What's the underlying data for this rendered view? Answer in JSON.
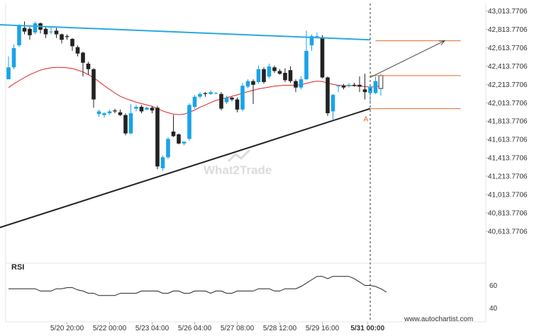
{
  "chart_data": {
    "type": "candlestick",
    "y_ticks": [
      "43,013.7706",
      "42,813.7706",
      "42,613.7706",
      "42,413.7706",
      "42,213.7706",
      "42,013.7706",
      "41,813.7706",
      "41,613.7706",
      "41,413.7706",
      "41,213.7706",
      "41,013.7706",
      "40,813.7706",
      "40,613.7706"
    ],
    "y_tick_values": [
      43013.7706,
      42813.7706,
      42613.7706,
      42413.7706,
      42213.7706,
      42013.7706,
      41813.7706,
      41613.7706,
      41413.7706,
      41213.7706,
      41013.7706,
      40813.7706,
      40613.7706
    ],
    "ylim": [
      40455,
      43080
    ],
    "x_ticks": [
      "5/20 20:00",
      "5/22 00:00",
      "5/23 04:00",
      "5/26 04:00",
      "5/27 08:00",
      "5/28 12:00",
      "5/29 16:00",
      "5/31 00:00"
    ],
    "x_tick_index": [
      11,
      19,
      27,
      35,
      43,
      51,
      59,
      67.5
    ],
    "x_bold_tick": "5/31 00:00",
    "candles": [
      [
        42270,
        42400,
        42390,
        42520
      ],
      [
        42400,
        42610,
        42650,
        42380
      ],
      [
        42640,
        42850,
        42870,
        42620
      ],
      [
        42830,
        42790,
        42900,
        42760
      ],
      [
        42820,
        42750,
        42840,
        42700
      ],
      [
        42780,
        42880,
        42900,
        42760
      ],
      [
        42880,
        42810,
        42890,
        42770
      ],
      [
        42820,
        42760,
        42840,
        42720
      ],
      [
        42790,
        42790,
        42840,
        42760
      ],
      [
        42800,
        42760,
        42830,
        42720
      ],
      [
        42760,
        42700,
        42770,
        42660
      ],
      [
        42740,
        42730,
        42760,
        42700
      ],
      [
        42710,
        42630,
        42720,
        42580
      ],
      [
        42620,
        42550,
        42640,
        42520
      ],
      [
        42560,
        42450,
        42570,
        42300
      ],
      [
        42440,
        42380,
        42460,
        42320
      ],
      [
        42380,
        42050,
        42390,
        41960
      ],
      [
        41890,
        41920,
        41940,
        41860
      ],
      [
        41880,
        41900,
        41910,
        41850
      ],
      [
        41900,
        41920,
        41940,
        41880
      ],
      [
        41930,
        41920,
        41950,
        41900
      ],
      [
        41910,
        41880,
        41940,
        41870
      ],
      [
        41880,
        41680,
        41900,
        41660
      ],
      [
        41680,
        41900,
        42000,
        41670
      ],
      [
        41950,
        41970,
        41990,
        41920
      ],
      [
        41970,
        41920,
        41990,
        41900
      ],
      [
        41940,
        41960,
        41970,
        41930
      ],
      [
        41960,
        41930,
        41980,
        41900
      ],
      [
        41960,
        41320,
        41980,
        41290
      ],
      [
        41300,
        41420,
        41440,
        41270
      ],
      [
        41420,
        41620,
        41640,
        41400
      ],
      [
        41700,
        41650,
        41880,
        41640
      ],
      [
        41670,
        41570,
        41680,
        41560
      ],
      [
        41570,
        41590,
        41590,
        41550
      ],
      [
        41620,
        41990,
        42010,
        41600
      ],
      [
        41970,
        42080,
        42100,
        41950
      ],
      [
        42080,
        42110,
        42130,
        42060
      ],
      [
        42120,
        42110,
        42130,
        42080
      ],
      [
        42110,
        42130,
        42150,
        42100
      ],
      [
        42120,
        42120,
        42130,
        42110
      ],
      [
        42110,
        41950,
        42130,
        41930
      ],
      [
        42020,
        42070,
        42090,
        42000
      ],
      [
        42070,
        42050,
        42080,
        42030
      ],
      [
        42050,
        41940,
        42070,
        41910
      ],
      [
        41940,
        42200,
        42230,
        41920
      ],
      [
        42190,
        42250,
        42270,
        42170
      ],
      [
        42250,
        42210,
        42270,
        42000
      ],
      [
        42240,
        42380,
        42420,
        42220
      ],
      [
        42380,
        42240,
        42400,
        42220
      ],
      [
        42300,
        42410,
        42440,
        42280
      ],
      [
        42400,
        42360,
        42420,
        42340
      ],
      [
        42360,
        42330,
        42380,
        42320
      ],
      [
        42340,
        42260,
        42390,
        42240
      ],
      [
        42370,
        42250,
        42410,
        42230
      ],
      [
        42250,
        42180,
        42270,
        42130
      ],
      [
        42180,
        42270,
        42300,
        42160
      ],
      [
        42270,
        42580,
        42800,
        42260
      ],
      [
        42640,
        42740,
        42760,
        42580
      ],
      [
        42740,
        42740,
        42780,
        42720
      ],
      [
        42730,
        42290,
        42750,
        42280
      ],
      [
        42290,
        41900,
        42300,
        41870
      ],
      [
        41920,
        42100,
        42110,
        41830
      ],
      [
        42200,
        42200,
        42210,
        42130
      ],
      [
        42200,
        42180,
        42220,
        42160
      ],
      [
        42200,
        42210,
        42230,
        42180
      ],
      [
        42210,
        42200,
        42230,
        42190
      ],
      [
        42210,
        42190,
        42300,
        42130
      ],
      [
        42160,
        42130,
        42330,
        42050
      ],
      [
        42120,
        42190,
        42200,
        42000
      ],
      [
        42120,
        42250,
        42300,
        42110
      ],
      [
        42170,
        42310,
        42330,
        42090
      ]
    ],
    "ma": [
      42180,
      42220,
      42255,
      42290,
      42320,
      42345,
      42370,
      42385,
      42395,
      42400,
      42400,
      42395,
      42388,
      42370,
      42350,
      42320,
      42285,
      42245,
      42200,
      42160,
      42120,
      42085,
      42060,
      42040,
      42020,
      42005,
      41990,
      41975,
      41950,
      41925,
      41905,
      41890,
      41885,
      41890,
      41910,
      41935,
      41965,
      41990,
      42015,
      42040,
      42055,
      42070,
      42085,
      42100,
      42120,
      42135,
      42150,
      42165,
      42175,
      42185,
      42195,
      42200,
      42205,
      42205,
      42205,
      42210,
      42225,
      42240,
      42250,
      42245,
      42230,
      42215,
      42205,
      42200,
      42200,
      42200,
      42195,
      42190,
      42185,
      42190,
      42195
    ],
    "trendlines": [
      {
        "from": [
          -4,
          42870
        ],
        "to": [
          68,
          42700
        ]
      },
      {
        "from": [
          -4,
          40610
        ],
        "to": [
          68,
          41950
        ]
      }
    ],
    "forecast_arrow": {
      "from": [
        68,
        42290
      ],
      "to": [
        82,
        42690
      ]
    },
    "target_levels": [
      {
        "value": 42690,
        "from": 69,
        "to": 85
      },
      {
        "value": 42310,
        "from": 68,
        "to": 85
      },
      {
        "value": 41950,
        "from": 68,
        "to": 85
      }
    ],
    "point_label": "A",
    "point_label_at": [
      67,
      41810
    ],
    "vertical_marker_index": 68,
    "rsi": {
      "label": "RSI",
      "ticks": [
        60,
        40
      ],
      "ylim": [
        32,
        76
      ],
      "values": [
        57,
        57,
        57,
        57,
        57,
        57,
        55,
        55,
        55,
        57,
        57,
        58,
        58,
        56,
        55,
        53,
        53,
        51,
        51,
        51,
        51,
        53,
        53,
        53,
        53,
        55,
        55,
        55,
        55,
        53,
        53,
        55,
        55,
        53,
        53,
        55,
        55,
        55,
        53,
        55,
        55,
        53,
        53,
        55,
        55,
        55,
        55,
        57,
        57,
        57,
        55,
        55,
        57,
        57,
        57,
        59,
        62,
        65,
        68,
        68,
        66,
        68,
        68,
        68,
        68,
        66,
        63,
        60,
        60,
        59,
        57
      ]
    },
    "colors": {
      "bull": "#1aa3e8",
      "bear": "#222222",
      "ma": "#e02020",
      "upper_trend": "#29a9e0",
      "lower_trend": "#222222",
      "level": "#e06a2a",
      "arrow": "#444444"
    }
  },
  "watermark": "What2Trade",
  "credit": "www.autochartist.com"
}
